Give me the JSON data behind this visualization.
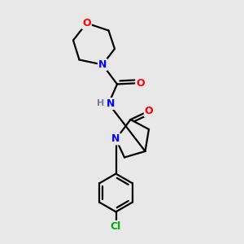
{
  "background_color": "#e8e8e8",
  "bond_color": "#000000",
  "atom_colors": {
    "O": "#ff0000",
    "N": "#0000ff",
    "Cl": "#00aa00",
    "H": "#708090"
  },
  "figsize": [
    3.0,
    3.0
  ],
  "dpi": 100
}
